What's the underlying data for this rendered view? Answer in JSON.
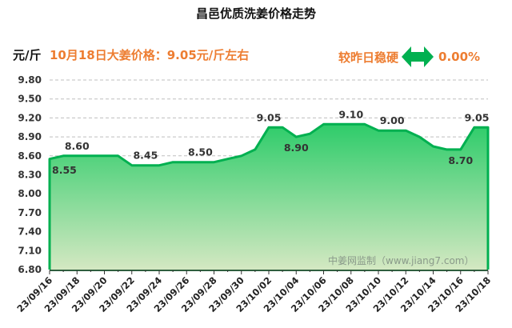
{
  "header": {
    "title": "昌邑优质洗姜价格走势",
    "unit": "元/斤",
    "headline": "10月18日大姜价格：9.05元/斤左右",
    "compare_label": "较昨日稳硬",
    "compare_icon": "left-right-arrow-icon",
    "compare_pct": "0.00%"
  },
  "colors": {
    "line": "#00b050",
    "fill_top": "#2ecc6a",
    "fill_bottom": "#d4e8c2",
    "accent_text": "#ed7d31",
    "grid": "#bfbfbf"
  },
  "watermark": "中姜网监制（www.jiang7.com）",
  "chart_data": {
    "type": "area",
    "title": "昌邑优质洗姜价格走势",
    "xlabel": "",
    "ylabel": "元/斤",
    "ylim": [
      6.8,
      9.8
    ],
    "yticks": [
      "9.80",
      "9.50",
      "9.20",
      "8.90",
      "8.60",
      "8.30",
      "8.00",
      "7.70",
      "7.40",
      "7.10",
      "6.80"
    ],
    "xtick_labels": [
      "23/09/16",
      "23/09/18",
      "23/09/20",
      "23/09/22",
      "23/09/24",
      "23/09/26",
      "23/09/28",
      "23/09/30",
      "23/10/02",
      "23/10/04",
      "23/10/06",
      "23/10/08",
      "23/10/10",
      "23/10/12",
      "23/10/14",
      "23/10/16",
      "23/10/18"
    ],
    "grid": "horizontal dashed",
    "legend": "none",
    "x": [
      "23/09/16",
      "23/09/17",
      "23/09/18",
      "23/09/19",
      "23/09/20",
      "23/09/21",
      "23/09/22",
      "23/09/23",
      "23/09/24",
      "23/09/25",
      "23/09/26",
      "23/09/27",
      "23/09/28",
      "23/09/29",
      "23/09/30",
      "23/10/01",
      "23/10/02",
      "23/10/03",
      "23/10/04",
      "23/10/05",
      "23/10/06",
      "23/10/07",
      "23/10/08",
      "23/10/09",
      "23/10/10",
      "23/10/11",
      "23/10/12",
      "23/10/13",
      "23/10/14",
      "23/10/15",
      "23/10/16",
      "23/10/17",
      "23/10/18"
    ],
    "values": [
      8.55,
      8.6,
      8.6,
      8.6,
      8.6,
      8.6,
      8.45,
      8.45,
      8.45,
      8.5,
      8.5,
      8.5,
      8.5,
      8.55,
      8.6,
      8.7,
      9.05,
      9.05,
      8.9,
      8.95,
      9.1,
      9.1,
      9.1,
      9.1,
      9.0,
      9.0,
      9.0,
      8.9,
      8.75,
      8.7,
      8.7,
      9.05,
      9.05
    ],
    "annotations": [
      {
        "index": 0,
        "label": "8.55",
        "pos": "below"
      },
      {
        "index": 2,
        "label": "8.60",
        "pos": "above"
      },
      {
        "index": 7,
        "label": "8.45",
        "pos": "above"
      },
      {
        "index": 11,
        "label": "8.50",
        "pos": "above"
      },
      {
        "index": 16,
        "label": "9.05",
        "pos": "above"
      },
      {
        "index": 18,
        "label": "8.90",
        "pos": "below"
      },
      {
        "index": 22,
        "label": "9.10",
        "pos": "above"
      },
      {
        "index": 25,
        "label": "9.00",
        "pos": "above"
      },
      {
        "index": 30,
        "label": "8.70",
        "pos": "below"
      },
      {
        "index": 32,
        "label": "9.05",
        "pos": "above"
      }
    ]
  }
}
